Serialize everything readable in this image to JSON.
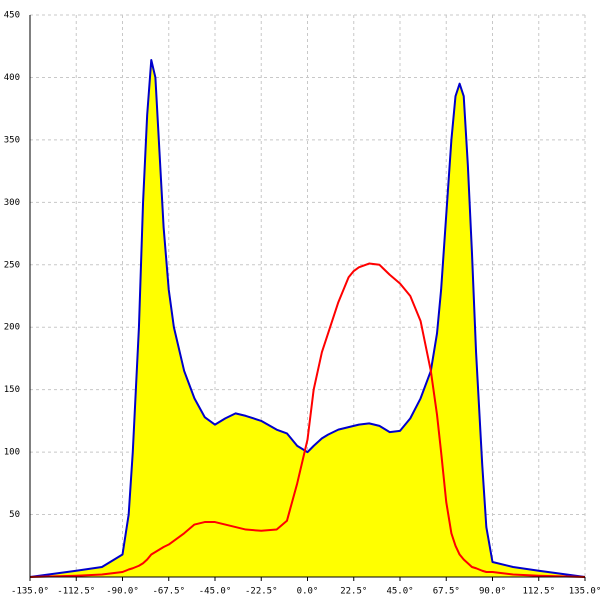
{
  "chart_data": {
    "type": "area",
    "x": [
      -135,
      -112.5,
      -100,
      -90,
      -87,
      -85,
      -82,
      -80,
      -78,
      -76,
      -74,
      -72,
      -70,
      -67.5,
      -65,
      -60,
      -55,
      -50,
      -45,
      -40,
      -35,
      -30,
      -22.5,
      -15,
      -10,
      -5,
      0,
      3,
      5,
      7,
      10,
      15,
      20,
      22.5,
      25,
      30,
      35,
      40,
      45,
      50,
      55,
      60,
      63,
      65,
      67.5,
      70,
      72,
      74,
      76,
      78,
      80,
      82,
      85,
      87,
      90,
      100,
      112.5,
      135
    ],
    "series": [
      {
        "color": "#0000cc",
        "fill": "#ffff00",
        "values": [
          0,
          5,
          8,
          18,
          50,
          100,
          200,
          300,
          370,
          414,
          400,
          340,
          280,
          230,
          200,
          165,
          143,
          128,
          122,
          127,
          131,
          129,
          125,
          118,
          115,
          105,
          100,
          105,
          108,
          111,
          114,
          118,
          120,
          121,
          122,
          123,
          121,
          116,
          117,
          127,
          143,
          165,
          195,
          230,
          290,
          350,
          385,
          395,
          385,
          330,
          260,
          180,
          90,
          40,
          12,
          8,
          5,
          0
        ]
      },
      {
        "color": "#ff0000",
        "values": [
          0,
          1,
          2,
          4,
          6,
          7,
          9,
          11,
          14,
          18,
          20,
          22,
          24,
          26,
          29,
          35,
          42,
          44,
          44,
          42,
          40,
          38,
          37,
          38,
          45,
          75,
          110,
          150,
          165,
          180,
          195,
          220,
          240,
          245,
          248,
          251,
          250,
          242,
          235,
          225,
          205,
          165,
          130,
          100,
          60,
          35,
          25,
          18,
          14,
          11,
          8,
          7,
          5,
          4,
          4,
          2,
          1,
          0
        ]
      }
    ],
    "xlim": [
      -135,
      135
    ],
    "ylim": [
      0,
      450
    ],
    "xticks": [
      {
        "value": -135,
        "label": "-135.0°"
      },
      {
        "value": -112.5,
        "label": "-112.5°"
      },
      {
        "value": -90,
        "label": "-90.0°"
      },
      {
        "value": -67.5,
        "label": "-67.5°"
      },
      {
        "value": -45,
        "label": "-45.0°"
      },
      {
        "value": -22.5,
        "label": "-22.5°"
      },
      {
        "value": 0,
        "label": "0.0°"
      },
      {
        "value": 22.5,
        "label": "22.5°"
      },
      {
        "value": 45,
        "label": "45.0°"
      },
      {
        "value": 67.5,
        "label": "67.5°"
      },
      {
        "value": 90,
        "label": "90.0°"
      },
      {
        "value": 112.5,
        "label": "112.5°"
      },
      {
        "value": 135,
        "label": "135.0°"
      }
    ],
    "yticks": [
      50,
      100,
      150,
      200,
      250,
      300,
      350,
      400,
      450
    ],
    "grid": true
  }
}
